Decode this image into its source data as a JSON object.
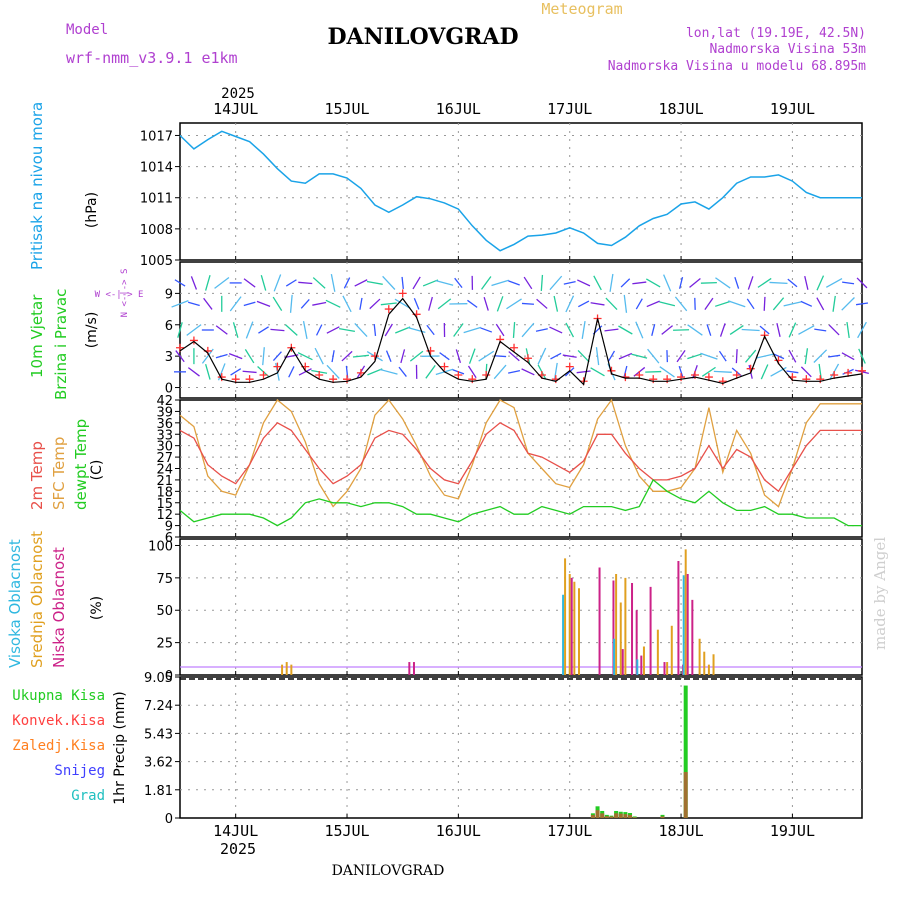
{
  "header": {
    "model_label": "Model",
    "model_name": "wrf-nmm_v3.9.1 e1km",
    "title": "DANILOVGRAD",
    "subtitle": "Meteogram",
    "lonlat": "lon,lat (19.19E, 42.5N)",
    "altitude": "Nadmorska Visina 53m",
    "altitude_model": "Nadmorska Visina u modelu 68.895m",
    "footer_title": "DANILOVGRAD",
    "watermark": "made by Angel"
  },
  "time_axis": {
    "year": "2025",
    "days": [
      "14JUL",
      "15JUL",
      "16JUL",
      "17JUL",
      "18JUL",
      "19JUL"
    ]
  },
  "colors": {
    "pressure": "#1aa3e8",
    "wind_speed": "#000000",
    "gust": "#ff3030",
    "temp2m": "#e8504a",
    "sfc_temp": "#e0a040",
    "dewpt": "#22cc22",
    "high_cloud": "#30b8e0",
    "mid_cloud": "#e0a020",
    "low_cloud": "#cc2288",
    "precip_total": "#22cc22",
    "precip_conv": "#ff4040",
    "precip_strat": "#ff8020",
    "snow": "#4040ff",
    "graupel": "#20c0c0",
    "title_purple": "#b040d0",
    "subtitle_gold": "#e8c060"
  },
  "chart_data": [
    {
      "type": "line",
      "title": "Pritisak na nivou mora",
      "ylabel": "(hPa)",
      "yticks": [
        1005,
        1008,
        1011,
        1014,
        1017
      ],
      "ylim": [
        1005,
        1018.2
      ],
      "x_hours": [
        0,
        3,
        6,
        9,
        12,
        15,
        18,
        21,
        24,
        27,
        30,
        33,
        36,
        39,
        42,
        45,
        48,
        51,
        54,
        57,
        60,
        63,
        66,
        69,
        72,
        75,
        78,
        81,
        84,
        87,
        90,
        93,
        96,
        99,
        102,
        105,
        108,
        111,
        114,
        117,
        120,
        123,
        126,
        129,
        132,
        135,
        138,
        141,
        144,
        147
      ],
      "series": [
        {
          "name": "Pritisak na nivou mora",
          "values": [
            1017,
            1015.7,
            1016.6,
            1017.4,
            1016.9,
            1016.4,
            1015.2,
            1013.8,
            1012.6,
            1012.4,
            1013.3,
            1013.3,
            1012.9,
            1011.9,
            1010.3,
            1009.6,
            1010.3,
            1011.1,
            1010.9,
            1010.5,
            1009.9,
            1008.3,
            1006.9,
            1005.9,
            1006.5,
            1007.3,
            1007.4,
            1007.6,
            1008.1,
            1007.6,
            1006.6,
            1006.4,
            1007.2,
            1008.3,
            1009.0,
            1009.4,
            1010.4,
            1010.6,
            1009.9,
            1011.0,
            1012.4,
            1013.0,
            1013.0,
            1013.2,
            1012.6,
            1011.5,
            1011.0,
            1011.0,
            1011.0,
            1011.0
          ]
        }
      ]
    },
    {
      "type": "line",
      "title": "10m Vjetar Brzina i Pravac",
      "ylabel": "(m/s)",
      "yticks": [
        0,
        3,
        6,
        9
      ],
      "ylim": [
        -1,
        12
      ],
      "compass": "W <-|-> E",
      "compass_ns": "N <-|-> S",
      "x_hours": [
        0,
        3,
        6,
        9,
        12,
        15,
        18,
        21,
        24,
        27,
        30,
        33,
        36,
        39,
        42,
        45,
        48,
        51,
        54,
        57,
        60,
        63,
        66,
        69,
        72,
        75,
        78,
        81,
        84,
        87,
        90,
        93,
        96,
        99,
        102,
        105,
        108,
        111,
        114,
        117,
        120,
        123,
        126,
        129,
        132,
        135,
        138,
        141,
        144,
        147
      ],
      "series": [
        {
          "name": "Wind speed",
          "values": [
            3.5,
            4.4,
            3.3,
            0.8,
            0.5,
            0.5,
            0.8,
            1.4,
            3.8,
            1.6,
            0.8,
            0.5,
            0.6,
            1.0,
            2.5,
            7.0,
            8.5,
            6.7,
            3.0,
            1.5,
            0.8,
            0.6,
            0.8,
            4.4,
            3.4,
            2.4,
            0.9,
            0.6,
            1.6,
            0.3,
            6.6,
            1.3,
            0.9,
            0.9,
            0.6,
            0.6,
            0.8,
            1.0,
            0.7,
            0.4,
            0.9,
            1.4,
            4.9,
            2.3,
            0.7,
            0.6,
            0.6,
            0.9,
            1.1,
            1.3
          ]
        },
        {
          "name": "Gust",
          "values": [
            3.8,
            4.5,
            3.5,
            1.0,
            0.8,
            0.8,
            1.2,
            2.0,
            3.8,
            2.0,
            1.2,
            0.8,
            0.8,
            1.4,
            3.0,
            7.5,
            9.0,
            7.0,
            3.5,
            2.0,
            1.2,
            0.8,
            1.2,
            4.6,
            3.8,
            2.8,
            1.2,
            0.8,
            2.0,
            0.6,
            6.6,
            1.6,
            1.0,
            1.2,
            0.8,
            0.8,
            1.0,
            1.2,
            1.0,
            0.6,
            1.2,
            1.8,
            5.0,
            2.6,
            1.0,
            0.8,
            0.8,
            1.2,
            1.4,
            1.6
          ]
        }
      ]
    },
    {
      "type": "line",
      "title": "2m Temp / SFC Temp / dewpt Temp",
      "ylabel": "(C)",
      "yticks": [
        6,
        9,
        12,
        15,
        18,
        21,
        24,
        27,
        30,
        33,
        36,
        39,
        42
      ],
      "ylim": [
        6,
        42
      ],
      "x_hours": [
        0,
        3,
        6,
        9,
        12,
        15,
        18,
        21,
        24,
        27,
        30,
        33,
        36,
        39,
        42,
        45,
        48,
        51,
        54,
        57,
        60,
        63,
        66,
        69,
        72,
        75,
        78,
        81,
        84,
        87,
        90,
        93,
        96,
        99,
        102,
        105,
        108,
        111,
        114,
        117,
        120,
        123,
        126,
        129,
        132,
        135,
        138,
        141,
        144,
        147
      ],
      "series": [
        {
          "name": "2m Temp",
          "values": [
            34,
            32,
            25,
            22,
            20,
            25,
            32,
            36,
            34,
            29,
            24,
            20,
            22,
            25,
            32,
            34,
            33,
            29,
            24,
            21,
            20,
            26,
            33,
            36,
            34,
            28,
            27,
            25,
            23,
            26,
            33,
            33,
            28,
            24,
            21,
            21,
            22,
            24,
            30,
            24,
            29,
            27,
            21,
            18,
            24,
            30,
            34,
            34,
            34,
            34
          ]
        },
        {
          "name": "SFC Temp",
          "values": [
            38,
            35,
            22,
            18,
            17,
            25,
            36,
            42,
            39,
            31,
            20,
            14,
            18,
            24,
            38,
            42,
            37,
            30,
            22,
            17,
            16,
            25,
            36,
            42,
            40,
            28,
            24,
            20,
            19,
            25,
            37,
            42,
            30,
            22,
            18,
            18,
            19,
            24,
            40,
            23,
            34,
            28,
            17,
            14,
            24,
            36,
            41,
            41,
            41,
            41
          ]
        },
        {
          "name": "dewpt Temp",
          "values": [
            13,
            10,
            11,
            12,
            12,
            12,
            11,
            9,
            11,
            15,
            16,
            15,
            15,
            14,
            15,
            15,
            14,
            12,
            12,
            11,
            10,
            12,
            13,
            14,
            12,
            12,
            14,
            13,
            12,
            14,
            14,
            14,
            13,
            14,
            21,
            18,
            16,
            15,
            18,
            15,
            13,
            13,
            14,
            12,
            12,
            11,
            11,
            11,
            9,
            9
          ]
        }
      ]
    },
    {
      "type": "bar",
      "title": "Visoka Oblacnost / Srednja Oblacnost / Niska Oblacnost",
      "ylabel": "(%)",
      "yticks": [
        0,
        25,
        50,
        75,
        100
      ],
      "ylim": [
        0,
        105
      ],
      "x_hours": [
        22,
        23,
        24,
        49,
        50,
        83,
        84,
        85,
        86,
        90,
        93,
        94,
        95,
        96,
        97,
        98,
        99,
        100,
        101,
        103,
        104,
        105,
        106,
        107,
        108,
        109,
        110,
        112,
        113,
        114,
        115
      ],
      "series": [
        {
          "name": "Visoka Oblacnost",
          "values": [
            0,
            0,
            0,
            0,
            0,
            62,
            0,
            0,
            0,
            0,
            0,
            28,
            0,
            0,
            0,
            0,
            12,
            0,
            0,
            0,
            0,
            0,
            0,
            0,
            0,
            77,
            0,
            0,
            0,
            0,
            0
          ]
        },
        {
          "name": "Srednja Oblacnost",
          "values": [
            8,
            10,
            8,
            0,
            0,
            90,
            78,
            72,
            67,
            0,
            0,
            78,
            56,
            75,
            0,
            0,
            0,
            22,
            0,
            35,
            0,
            10,
            38,
            0,
            0,
            97,
            0,
            28,
            18,
            8,
            16
          ]
        },
        {
          "name": "Niska Oblacnost",
          "values": [
            0,
            0,
            0,
            10,
            10,
            0,
            75,
            0,
            0,
            83,
            73,
            0,
            20,
            0,
            71,
            50,
            15,
            0,
            68,
            0,
            10,
            0,
            0,
            88,
            8,
            78,
            58,
            0,
            0,
            0,
            0
          ]
        }
      ]
    },
    {
      "type": "bar",
      "title": "Ukupna Kisa / Konvek.Kisa / Zaledj.Kisa / Snijeg / Grad",
      "ylabel": "1hr Precip (mm)",
      "yticks": [
        0,
        1.81,
        3.62,
        5.43,
        7.24,
        9.05
      ],
      "ylim": [
        0,
        9.05
      ],
      "legend": [
        "Ukupna Kisa",
        "Konvek.Kisa",
        "Zaledj.Kisa",
        "Snijeg",
        "Grad"
      ],
      "x_hours": [
        89,
        90,
        91,
        92,
        93,
        94,
        95,
        96,
        97,
        98,
        104,
        109
      ],
      "series": [
        {
          "name": "Ukupna Kisa",
          "values": [
            0.3,
            0.75,
            0.45,
            0.2,
            0.15,
            0.45,
            0.4,
            0.38,
            0.32,
            0.1,
            0.2,
            8.5
          ]
        },
        {
          "name": "Zaledj.Kisa",
          "values": [
            0.2,
            0.5,
            0.3,
            0.12,
            0.1,
            0.3,
            0.28,
            0.25,
            0.2,
            0.05,
            0.1,
            2.95
          ]
        }
      ]
    }
  ]
}
